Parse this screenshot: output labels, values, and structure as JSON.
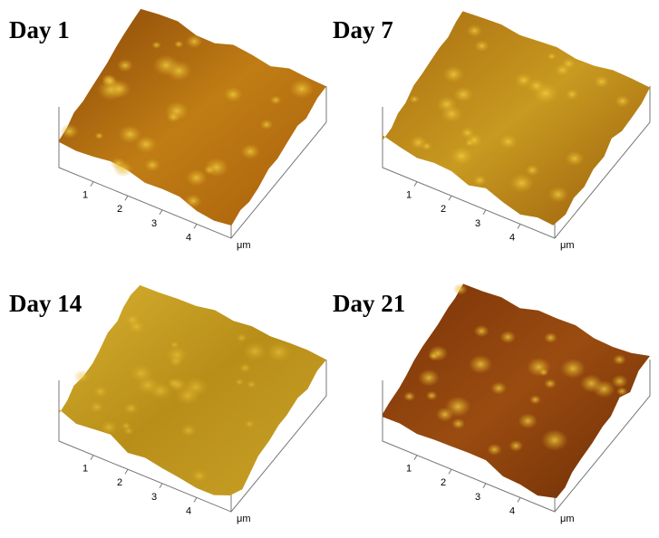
{
  "panels": [
    {
      "title": "Day 1",
      "ticks": [
        "1",
        "2",
        "3",
        "4"
      ],
      "unit": "μm"
    },
    {
      "title": "Day 7",
      "ticks": [
        "1",
        "2",
        "3",
        "4"
      ],
      "unit": "μm"
    },
    {
      "title": "Day 14",
      "ticks": [
        "1",
        "2",
        "3",
        "4"
      ],
      "unit": "μm"
    },
    {
      "title": "Day 21",
      "ticks": [
        "1",
        "2",
        "3",
        "4"
      ],
      "unit": "μm"
    }
  ]
}
